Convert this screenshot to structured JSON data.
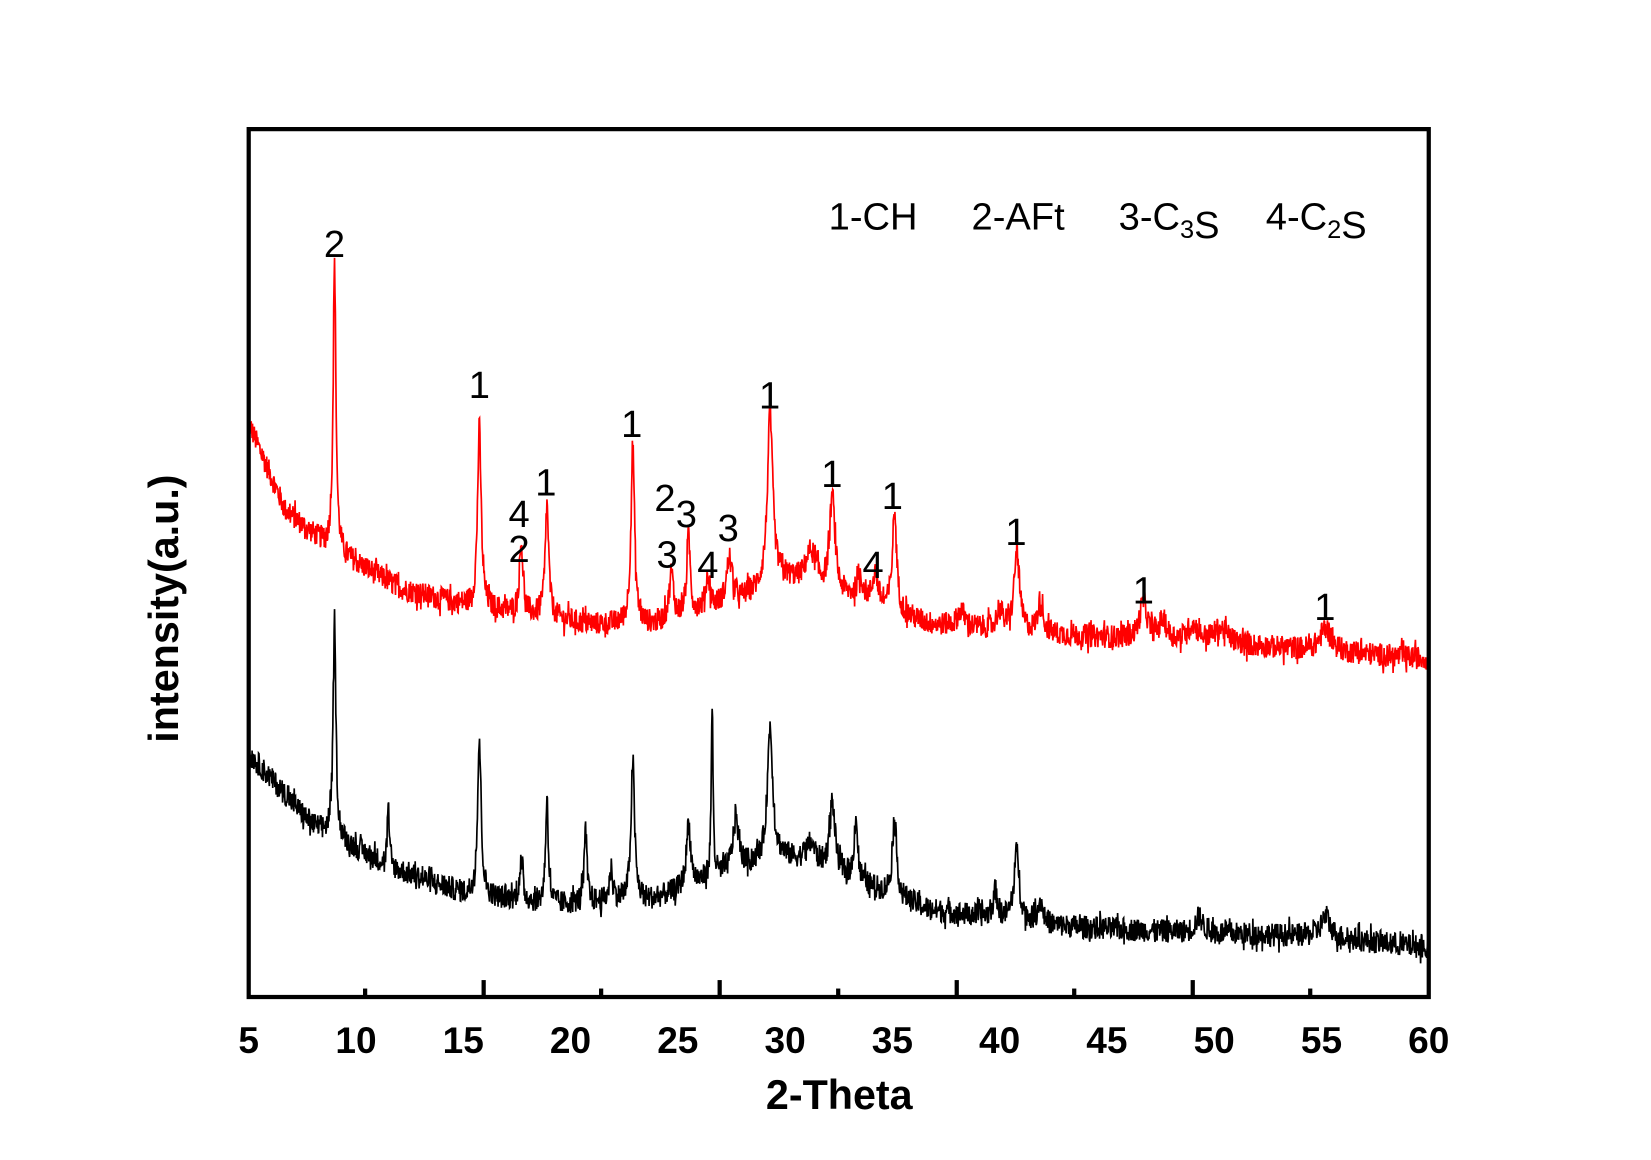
{
  "chart_data": {
    "type": "line",
    "title": "",
    "xlabel": "2-Theta",
    "ylabel": "intensity(a.u.)",
    "xlim": [
      5,
      60
    ],
    "ylim": [
      0,
      820
    ],
    "xticks": [
      5,
      10,
      15,
      20,
      25,
      30,
      35,
      40,
      45,
      50,
      55,
      60
    ],
    "grid": false,
    "legend": {
      "placement": "top-right",
      "items": [
        {
          "id": "1",
          "text": "1-CH",
          "parts": [
            [
              "1-CH",
              ""
            ]
          ]
        },
        {
          "id": "2",
          "text": "2-AFt",
          "parts": [
            [
              "2-AFt",
              ""
            ]
          ]
        },
        {
          "id": "3",
          "text": "3-C3S",
          "parts": [
            [
              "3-C",
              ""
            ],
            [
              "3",
              "sub"
            ],
            [
              "S",
              ""
            ]
          ]
        },
        {
          "id": "4",
          "text": "4-C2S",
          "parts": [
            [
              "4-C",
              ""
            ],
            [
              "2",
              "sub"
            ],
            [
              "S",
              ""
            ]
          ]
        }
      ]
    },
    "series": [
      {
        "name": "upper (red)",
        "color": "#ff0000",
        "noise": 11,
        "baseline": [
          [
            5,
            542
          ],
          [
            6.7,
            460
          ],
          [
            8.7,
            425
          ],
          [
            12.2,
            385
          ],
          [
            15.1,
            370
          ],
          [
            21,
            352
          ],
          [
            24,
            352
          ],
          [
            27.9,
            375
          ],
          [
            29.9,
            395
          ],
          [
            32.4,
            380
          ],
          [
            36.8,
            352
          ],
          [
            42.7,
            342
          ],
          [
            47.7,
            337
          ],
          [
            55.1,
            327
          ],
          [
            59.8,
            320
          ],
          [
            60,
            320
          ]
        ],
        "peaks": [
          [
            9.0,
            270,
            0.08
          ],
          [
            15.75,
            170,
            0.1
          ],
          [
            17.7,
            67,
            0.1
          ],
          [
            18.9,
            105,
            0.1
          ],
          [
            22.9,
            170,
            0.1
          ],
          [
            24.7,
            44,
            0.12
          ],
          [
            25.5,
            72,
            0.1
          ],
          [
            26.4,
            30,
            0.12
          ],
          [
            27.4,
            42,
            0.15
          ],
          [
            29.3,
            160,
            0.15
          ],
          [
            31.2,
            32,
            0.3
          ],
          [
            32.2,
            90,
            0.15
          ],
          [
            33.5,
            20,
            0.2
          ],
          [
            34.2,
            30,
            0.15
          ],
          [
            35.1,
            95,
            0.12
          ],
          [
            38.2,
            15,
            0.2
          ],
          [
            40.0,
            20,
            0.15
          ],
          [
            40.8,
            75,
            0.15
          ],
          [
            41.9,
            30,
            0.15
          ],
          [
            46.7,
            35,
            0.2
          ],
          [
            47.6,
            18,
            0.2
          ],
          [
            49.0,
            15,
            0.3
          ],
          [
            50.3,
            14,
            0.4
          ],
          [
            55.2,
            22,
            0.3
          ]
        ]
      },
      {
        "name": "lower (black)",
        "color": "#000000",
        "noise": 11,
        "baseline": [
          [
            5,
            230
          ],
          [
            8,
            162
          ],
          [
            11.7,
            122
          ],
          [
            15.1,
            97
          ],
          [
            19,
            87
          ],
          [
            23.9,
            92
          ],
          [
            27.9,
            122
          ],
          [
            29.9,
            132
          ],
          [
            32.9,
            112
          ],
          [
            36.8,
            82
          ],
          [
            42.7,
            67
          ],
          [
            47.7,
            62
          ],
          [
            55.1,
            57
          ],
          [
            59.8,
            47
          ],
          [
            60,
            47
          ]
        ],
        "peaks": [
          [
            9.0,
            199,
            0.08
          ],
          [
            11.5,
            60,
            0.05
          ],
          [
            15.75,
            147,
            0.1
          ],
          [
            17.7,
            35,
            0.1
          ],
          [
            18.9,
            100,
            0.08
          ],
          [
            20.7,
            67,
            0.08
          ],
          [
            21.9,
            30,
            0.1
          ],
          [
            22.9,
            132,
            0.1
          ],
          [
            25.5,
            60,
            0.12
          ],
          [
            26.6,
            164,
            0.05
          ],
          [
            27.7,
            50,
            0.15
          ],
          [
            29.3,
            125,
            0.15
          ],
          [
            31.2,
            20,
            0.3
          ],
          [
            32.2,
            67,
            0.15
          ],
          [
            33.3,
            60,
            0.1
          ],
          [
            35.1,
            74,
            0.12
          ],
          [
            39.8,
            25,
            0.12
          ],
          [
            40.8,
            65,
            0.15
          ],
          [
            41.9,
            20,
            0.15
          ],
          [
            49.3,
            15,
            0.2
          ],
          [
            55.2,
            20,
            0.25
          ]
        ]
      }
    ],
    "annotations": [
      {
        "text": "2",
        "x": 9.0,
        "y": 712
      },
      {
        "text": "1",
        "x": 15.75,
        "y": 579
      },
      {
        "text": "4",
        "x": 17.6,
        "y": 457
      },
      {
        "text": "2",
        "x": 17.6,
        "y": 424
      },
      {
        "text": "1",
        "x": 18.85,
        "y": 487
      },
      {
        "text": "1",
        "x": 22.85,
        "y": 542
      },
      {
        "text": "2",
        "x": 24.4,
        "y": 472
      },
      {
        "text": "3",
        "x": 25.4,
        "y": 457
      },
      {
        "text": "3",
        "x": 24.5,
        "y": 419
      },
      {
        "text": "4",
        "x": 26.4,
        "y": 409
      },
      {
        "text": "3",
        "x": 27.35,
        "y": 444
      },
      {
        "text": "1",
        "x": 29.28,
        "y": 569
      },
      {
        "text": "1",
        "x": 32.18,
        "y": 495
      },
      {
        "text": "4",
        "x": 34.1,
        "y": 409
      },
      {
        "text": "1",
        "x": 35.0,
        "y": 474
      },
      {
        "text": "1",
        "x": 40.76,
        "y": 440
      },
      {
        "text": "1",
        "x": 46.7,
        "y": 385
      },
      {
        "text": "1",
        "x": 55.16,
        "y": 369
      }
    ]
  }
}
